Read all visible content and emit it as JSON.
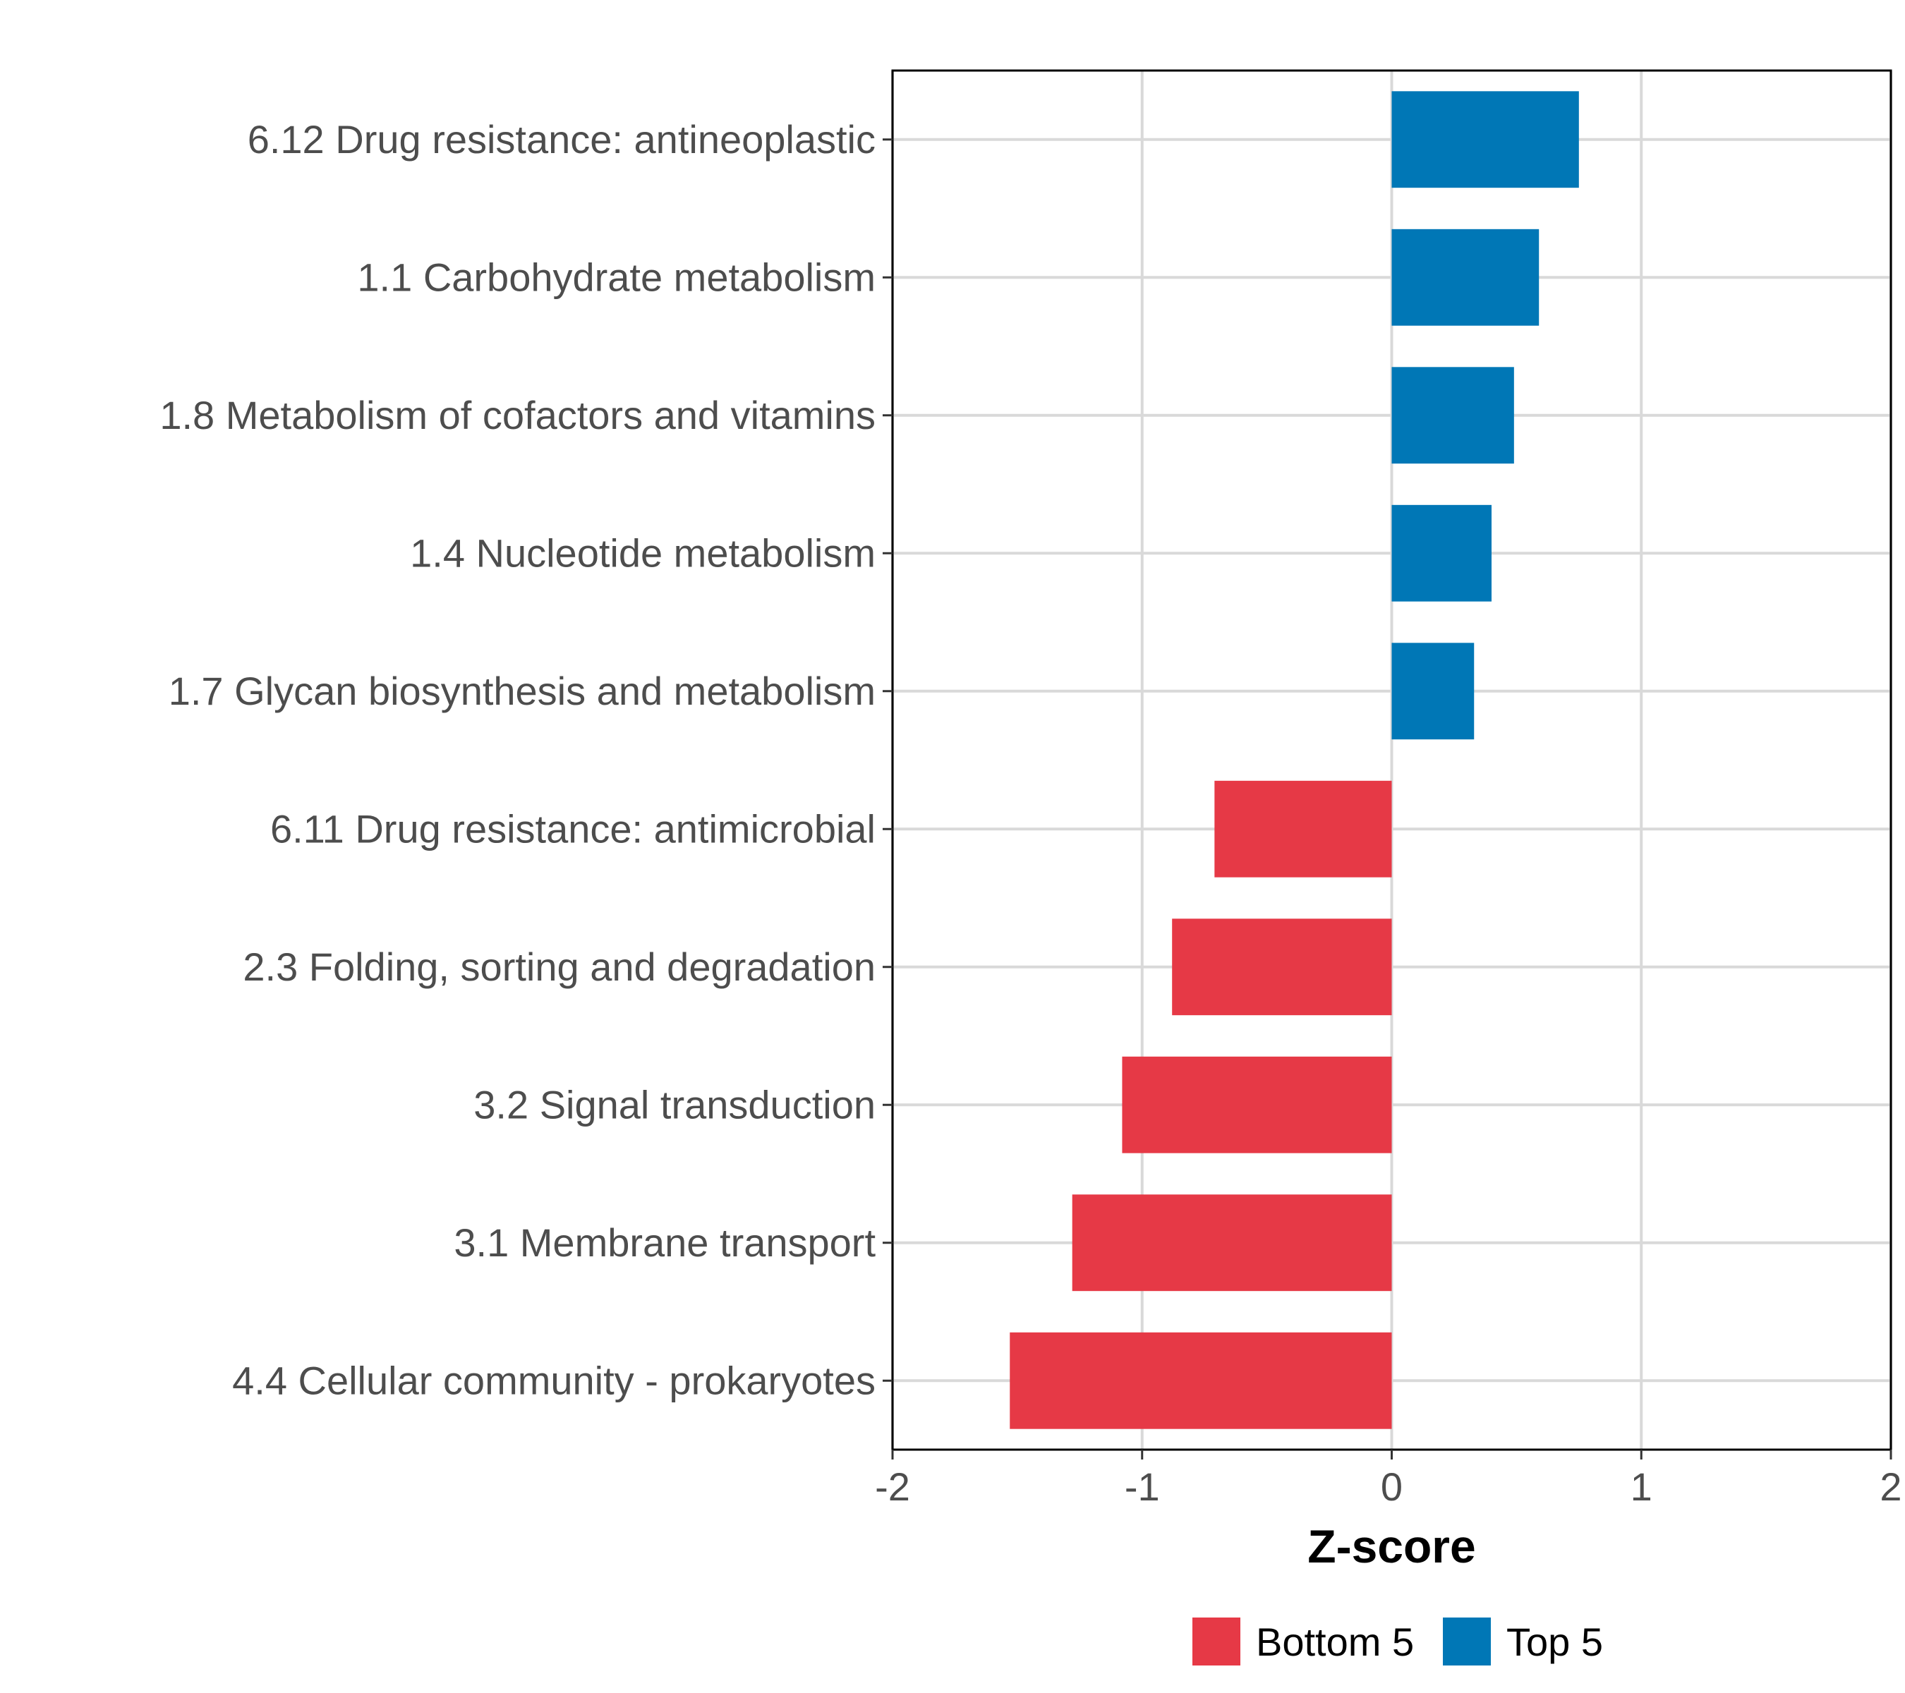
{
  "chart_data": {
    "type": "bar",
    "orientation": "horizontal",
    "title": "",
    "xlabel": "Z-score",
    "ylabel": "",
    "xlim": [
      -2,
      2
    ],
    "xticks": [
      -2,
      -1,
      0,
      1,
      2
    ],
    "xtick_labels": [
      "-2",
      "-1",
      "0",
      "1",
      "2"
    ],
    "grid": true,
    "legend_position": "bottom",
    "categories": [
      "6.12 Drug resistance: antineoplastic",
      "1.1 Carbohydrate metabolism",
      "1.8 Metabolism of cofactors and vitamins",
      "1.4 Nucleotide metabolism",
      "1.7 Glycan biosynthesis and metabolism",
      "6.11 Drug resistance: antimicrobial",
      "2.3 Folding, sorting and degradation",
      "3.2 Signal transduction",
      "3.1 Membrane transport",
      "4.4 Cellular community - prokaryotes"
    ],
    "values": [
      0.75,
      0.59,
      0.49,
      0.4,
      0.33,
      -0.71,
      -0.88,
      -1.08,
      -1.28,
      -1.53
    ],
    "groups": [
      "Top 5",
      "Top 5",
      "Top 5",
      "Top 5",
      "Top 5",
      "Bottom 5",
      "Bottom 5",
      "Bottom 5",
      "Bottom 5",
      "Bottom 5"
    ],
    "series": [
      {
        "name": "Bottom 5",
        "color": "#e63946"
      },
      {
        "name": "Top 5",
        "color": "#0077b6"
      }
    ]
  }
}
